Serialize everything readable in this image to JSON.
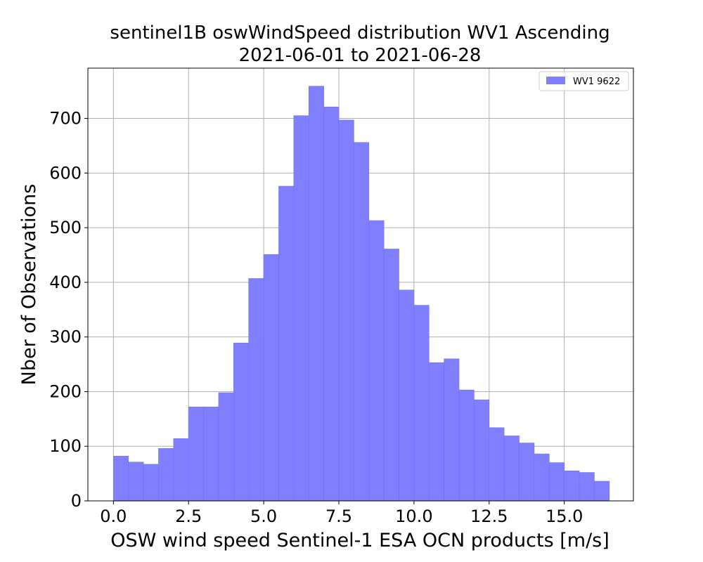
{
  "chart_data": {
    "type": "bar",
    "title": "sentinel1B oswWindSpeed distribution WV1 Ascending",
    "subtitle": "2021-06-01 to 2021-06-28",
    "xlabel": "OSW wind speed Sentinel-1 ESA OCN products [m/s]",
    "ylabel": "Nber of Observations",
    "xlim": [
      -0.85,
      17.3
    ],
    "ylim": [
      0,
      792
    ],
    "xticks": [
      0.0,
      2.5,
      5.0,
      7.5,
      10.0,
      12.5,
      15.0
    ],
    "xtick_labels": [
      "0.0",
      "2.5",
      "5.0",
      "7.5",
      "10.0",
      "12.5",
      "15.0"
    ],
    "yticks": [
      0,
      100,
      200,
      300,
      400,
      500,
      600,
      700
    ],
    "ytick_labels": [
      "0",
      "100",
      "200",
      "300",
      "400",
      "500",
      "600",
      "700"
    ],
    "grid": true,
    "legend_position": "top-right",
    "bin_width": 0.5,
    "bin_edges": [
      0.0,
      0.5,
      1.0,
      1.5,
      2.0,
      2.5,
      3.0,
      3.5,
      4.0,
      4.5,
      5.0,
      5.5,
      6.0,
      6.5,
      7.0,
      7.5,
      8.0,
      8.5,
      9.0,
      9.5,
      10.0,
      10.5,
      11.0,
      11.5,
      12.0,
      12.5,
      13.0,
      13.5,
      14.0,
      14.5,
      15.0,
      15.5,
      16.0,
      16.5
    ],
    "series": [
      {
        "name": "WV1 9622",
        "color": "#8080ff",
        "values": [
          82,
          71,
          67,
          96,
          114,
          172,
          172,
          198,
          289,
          407,
          451,
          576,
          705,
          759,
          721,
          697,
          656,
          513,
          461,
          386,
          358,
          253,
          260,
          203,
          185,
          134,
          119,
          106,
          86,
          70,
          55,
          52,
          36
        ]
      }
    ]
  }
}
